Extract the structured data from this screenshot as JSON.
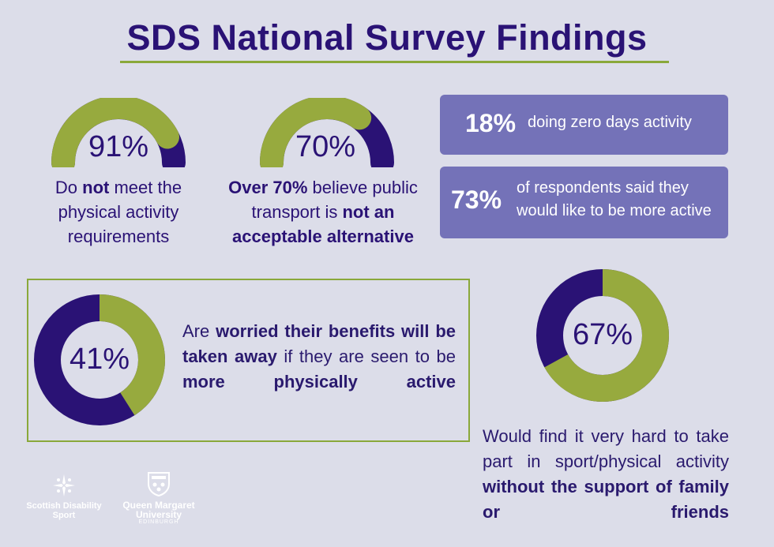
{
  "header": {
    "title": "SDS National Survey Findings"
  },
  "colors": {
    "navy": "#2a1275",
    "green": "#97aa3e",
    "background": "#dcdde9",
    "box": "#7472b8"
  },
  "gauges": [
    {
      "value_label": "91%",
      "fraction": 0.91,
      "caption": {
        "pre": "Do ",
        "bold": "not",
        "post": " meet the physical activity requirements"
      }
    },
    {
      "value_label": "70%",
      "fraction": 0.7,
      "caption": {
        "bold1": "Over 70%",
        "mid": " believe public transport is ",
        "bold2": "not an acceptable alternative"
      }
    }
  ],
  "stats": [
    {
      "value": "18%",
      "text": "doing zero days activity"
    },
    {
      "value": "73%",
      "text": "of respondents said they would like to be more active"
    }
  ],
  "donut_benefits": {
    "value_label": "41%",
    "fraction": 0.41,
    "text": {
      "pre": "Are ",
      "bold1": "worried their benefits will be taken away",
      "mid": " if they are seen to be ",
      "bold2": "more physically active"
    }
  },
  "donut_support": {
    "value_label": "67%",
    "fraction": 0.67,
    "text": {
      "pre": "Would find it very hard to take part in sport/physical activity ",
      "bold": "without the support of family or friends"
    }
  },
  "logos": {
    "sds": {
      "line1": "Scottish Disability",
      "line2": "Sport"
    },
    "qmu": {
      "line1": "Queen Margaret",
      "line2": "University",
      "line3": "EDINBURGH"
    }
  }
}
